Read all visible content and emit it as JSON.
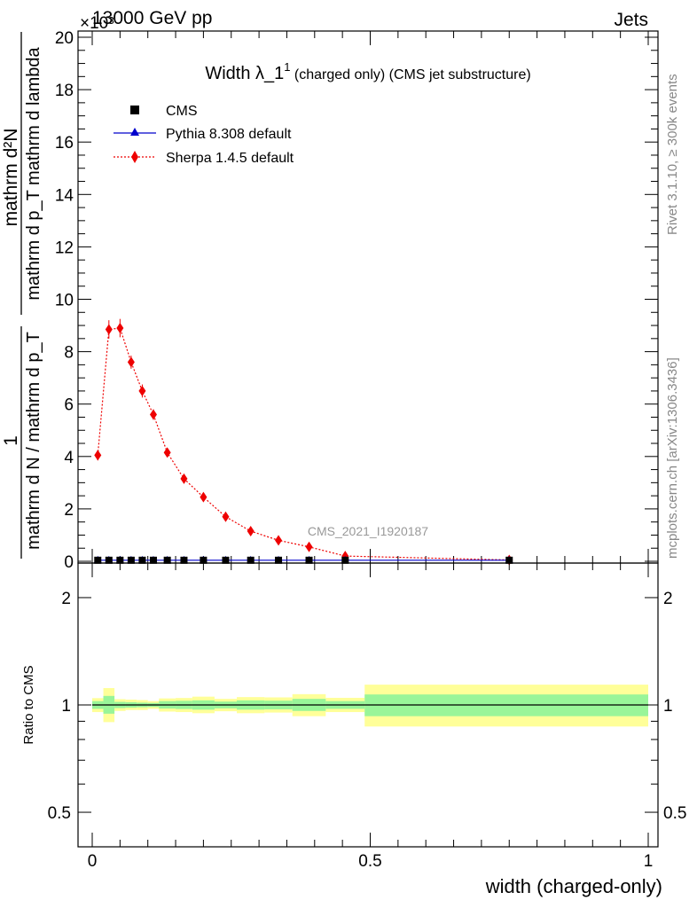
{
  "header": {
    "left_label": "13000 GeV pp",
    "right_label": "Jets",
    "exponent_label": "×10³",
    "watermark": "CMS_2021_I1920187"
  },
  "side_labels": {
    "rivet": "Rivet 3.1.10, ≥ 300k events",
    "mcplots": "mcplots.cern.ch [arXiv:1306.3436]"
  },
  "colors": {
    "cms": "#000000",
    "pythia": "#0000cc",
    "sherpa": "#ee0000",
    "band_inner": "#99f599",
    "band_outer": "#ffff99"
  },
  "chart_data": [
    {
      "type": "line",
      "title": "Width λ_1¹ (charged only) (CMS jet substructure)",
      "title_parts": {
        "main": "Width λ_1",
        "sup": "1",
        "suffix": " (charged only) (CMS jet substructure)"
      },
      "ylabel": {
        "top_numerator": "1",
        "top_denominator": "mathrm d N / mathrm d p_T",
        "right_numerator": "mathrm d²N",
        "right_denominator": "mathrm d p_T mathrm d lambda",
        "full": "1/(mathrm d N / mathrm d p_T) · mathrm d²N/(mathrm d p_T mathrm d lambda)"
      },
      "xlim": [
        0,
        1
      ],
      "ylim": [
        0,
        20.3
      ],
      "y_scale_note": "×10³",
      "yticks": [
        0,
        2,
        4,
        6,
        8,
        10,
        12,
        14,
        16,
        18,
        20
      ],
      "ytick_labels": [
        "0",
        "2",
        "4",
        "6",
        "8",
        "10",
        "12",
        "14",
        "16",
        "18",
        "20"
      ],
      "legend": [
        "CMS",
        "Pythia 8.308 default",
        "Sherpa 1.4.5 default"
      ],
      "legend_position": "top-left",
      "series": [
        {
          "name": "CMS",
          "marker": "square",
          "x": [
            0.01,
            0.03,
            0.05,
            0.07,
            0.09,
            0.11,
            0.135,
            0.165,
            0.2,
            0.24,
            0.285,
            0.335,
            0.39,
            0.455,
            0.75
          ],
          "y": [
            0.04,
            0.04,
            0.04,
            0.04,
            0.04,
            0.04,
            0.04,
            0.04,
            0.04,
            0.04,
            0.04,
            0.04,
            0.04,
            0.04,
            0.04
          ]
        },
        {
          "name": "Pythia 8.308 default",
          "marker": "triangle",
          "x": [
            0.01,
            0.03,
            0.05,
            0.07,
            0.09,
            0.11,
            0.135,
            0.165,
            0.2,
            0.24,
            0.285,
            0.335,
            0.39,
            0.455,
            0.75
          ],
          "y": [
            0.04,
            0.04,
            0.04,
            0.04,
            0.04,
            0.04,
            0.04,
            0.04,
            0.04,
            0.04,
            0.04,
            0.04,
            0.04,
            0.04,
            0.04
          ]
        },
        {
          "name": "Sherpa 1.4.5 default",
          "marker": "diamond",
          "x": [
            0.01,
            0.03,
            0.05,
            0.07,
            0.09,
            0.11,
            0.135,
            0.165,
            0.2,
            0.24,
            0.285,
            0.335,
            0.39,
            0.455,
            0.75
          ],
          "y": [
            4.05,
            8.85,
            8.9,
            7.6,
            6.5,
            5.6,
            4.15,
            3.15,
            2.45,
            1.7,
            1.15,
            0.8,
            0.55,
            0.2,
            0.05
          ],
          "yerr": [
            0.2,
            0.35,
            0.35,
            0.25,
            0.25,
            0.2,
            0.15,
            0.12,
            0.1,
            0.08,
            0.06,
            0.05,
            0.04,
            0.03,
            0.02
          ]
        }
      ]
    },
    {
      "type": "area",
      "ylabel": "Ratio to CMS",
      "xlabel": "width (charged-only)",
      "xlim": [
        0,
        1
      ],
      "ylim": [
        0.4,
        2.5
      ],
      "y_scale": "log",
      "reference_line": 1,
      "xticks": [
        0,
        0.5,
        1
      ],
      "xtick_labels": [
        "0",
        "0.5",
        "1"
      ],
      "yticks": [
        0.5,
        1,
        2
      ],
      "ytick_labels": [
        "0.5",
        "1",
        "2"
      ],
      "bins": [
        {
          "x0": 0.0,
          "x1": 0.02,
          "inner": [
            0.975,
            1.025
          ],
          "outer": [
            0.955,
            1.045
          ]
        },
        {
          "x0": 0.02,
          "x1": 0.04,
          "inner": [
            0.945,
            1.06
          ],
          "outer": [
            0.895,
            1.115
          ]
        },
        {
          "x0": 0.04,
          "x1": 0.06,
          "inner": [
            0.98,
            1.02
          ],
          "outer": [
            0.962,
            1.038
          ]
        },
        {
          "x0": 0.06,
          "x1": 0.08,
          "inner": [
            0.983,
            1.018
          ],
          "outer": [
            0.968,
            1.035
          ]
        },
        {
          "x0": 0.08,
          "x1": 0.1,
          "inner": [
            0.985,
            1.015
          ],
          "outer": [
            0.968,
            1.032
          ]
        },
        {
          "x0": 0.1,
          "x1": 0.12,
          "inner": [
            0.987,
            1.013
          ],
          "outer": [
            0.975,
            1.025
          ]
        },
        {
          "x0": 0.12,
          "x1": 0.15,
          "inner": [
            0.977,
            1.025
          ],
          "outer": [
            0.958,
            1.043
          ]
        },
        {
          "x0": 0.15,
          "x1": 0.18,
          "inner": [
            0.974,
            1.027
          ],
          "outer": [
            0.955,
            1.046
          ]
        },
        {
          "x0": 0.18,
          "x1": 0.22,
          "inner": [
            0.97,
            1.03
          ],
          "outer": [
            0.948,
            1.055
          ]
        },
        {
          "x0": 0.22,
          "x1": 0.26,
          "inner": [
            0.978,
            1.022
          ],
          "outer": [
            0.96,
            1.04
          ]
        },
        {
          "x0": 0.26,
          "x1": 0.31,
          "inner": [
            0.97,
            1.03
          ],
          "outer": [
            0.948,
            1.052
          ]
        },
        {
          "x0": 0.31,
          "x1": 0.36,
          "inner": [
            0.972,
            1.028
          ],
          "outer": [
            0.952,
            1.05
          ]
        },
        {
          "x0": 0.36,
          "x1": 0.42,
          "inner": [
            0.962,
            1.04
          ],
          "outer": [
            0.93,
            1.072
          ]
        },
        {
          "x0": 0.42,
          "x1": 0.49,
          "inner": [
            0.975,
            1.025
          ],
          "outer": [
            0.955,
            1.047
          ]
        },
        {
          "x0": 0.49,
          "x1": 1.0,
          "inner": [
            0.93,
            1.07
          ],
          "outer": [
            0.87,
            1.14
          ]
        }
      ]
    }
  ]
}
